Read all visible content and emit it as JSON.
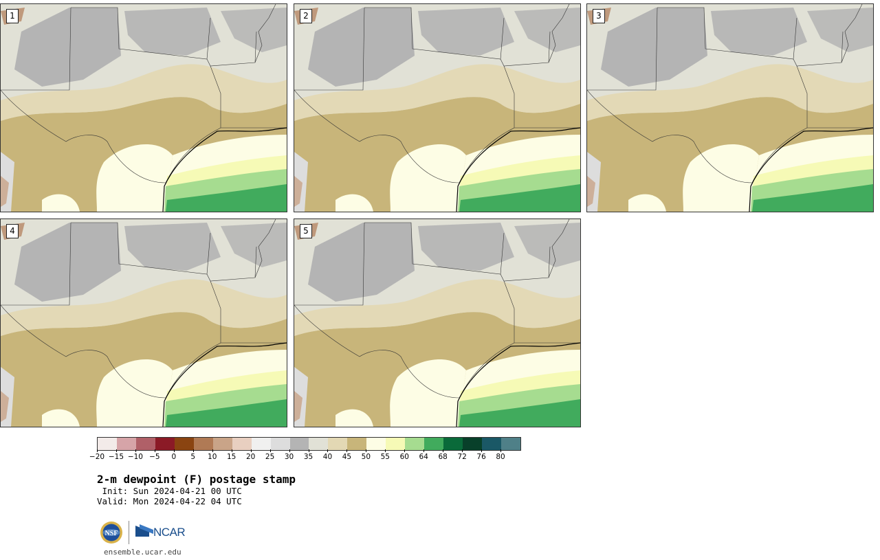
{
  "panels": [
    {
      "num": "1"
    },
    {
      "num": "2"
    },
    {
      "num": "3"
    },
    {
      "num": "4"
    },
    {
      "num": "5"
    }
  ],
  "colorbar": {
    "colors": [
      "#f3ebe9",
      "#d6a4a8",
      "#b06068",
      "#8b1a26",
      "#8a4411",
      "#b07a55",
      "#c9a488",
      "#e8cfc0",
      "#f0f0ef",
      "#dddddd",
      "#b4b4b4",
      "#e1e1d6",
      "#e3d8b4",
      "#c8b57a",
      "#fdfde5",
      "#f6fab6",
      "#a6dc90",
      "#41ab5d",
      "#0a6a3a",
      "#08402a",
      "#1a5866",
      "#4f8088"
    ],
    "ticks": [
      "-20",
      "-15",
      "-10",
      "-5",
      "0",
      "5",
      "10",
      "15",
      "20",
      "25",
      "30",
      "35",
      "40",
      "45",
      "50",
      "55",
      "60",
      "64",
      "68",
      "72",
      "76",
      "80"
    ]
  },
  "title": "2-m dewpoint (F) postage stamp",
  "init": " Init: Sun 2024-04-21 00 UTC",
  "valid": "Valid: Mon 2024-04-22 04 UTC",
  "logo": {
    "nsf": "NSF",
    "ncar": "NCAR"
  },
  "footer_url": "ensemble.ucar.edu"
}
